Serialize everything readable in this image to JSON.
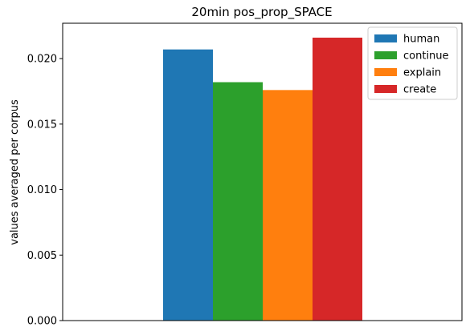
{
  "chart_data": {
    "type": "bar",
    "title": "20min pos_prop_SPACE",
    "xlabel": "",
    "ylabel": "values averaged per corpus",
    "ylim": [
      0,
      0.0227
    ],
    "yticks": [
      "0.000",
      "0.005",
      "0.010",
      "0.015",
      "0.020"
    ],
    "ytick_values": [
      0,
      0.005,
      0.01,
      0.015,
      0.02
    ],
    "grid": false,
    "legend_position": "top-right",
    "series": [
      {
        "name": "human",
        "value": 0.0207,
        "color": "#1f77b4"
      },
      {
        "name": "continue",
        "value": 0.0182,
        "color": "#2ca02c"
      },
      {
        "name": "explain",
        "value": 0.0176,
        "color": "#ff7f0e"
      },
      {
        "name": "create",
        "value": 0.0216,
        "color": "#d62728"
      }
    ]
  }
}
